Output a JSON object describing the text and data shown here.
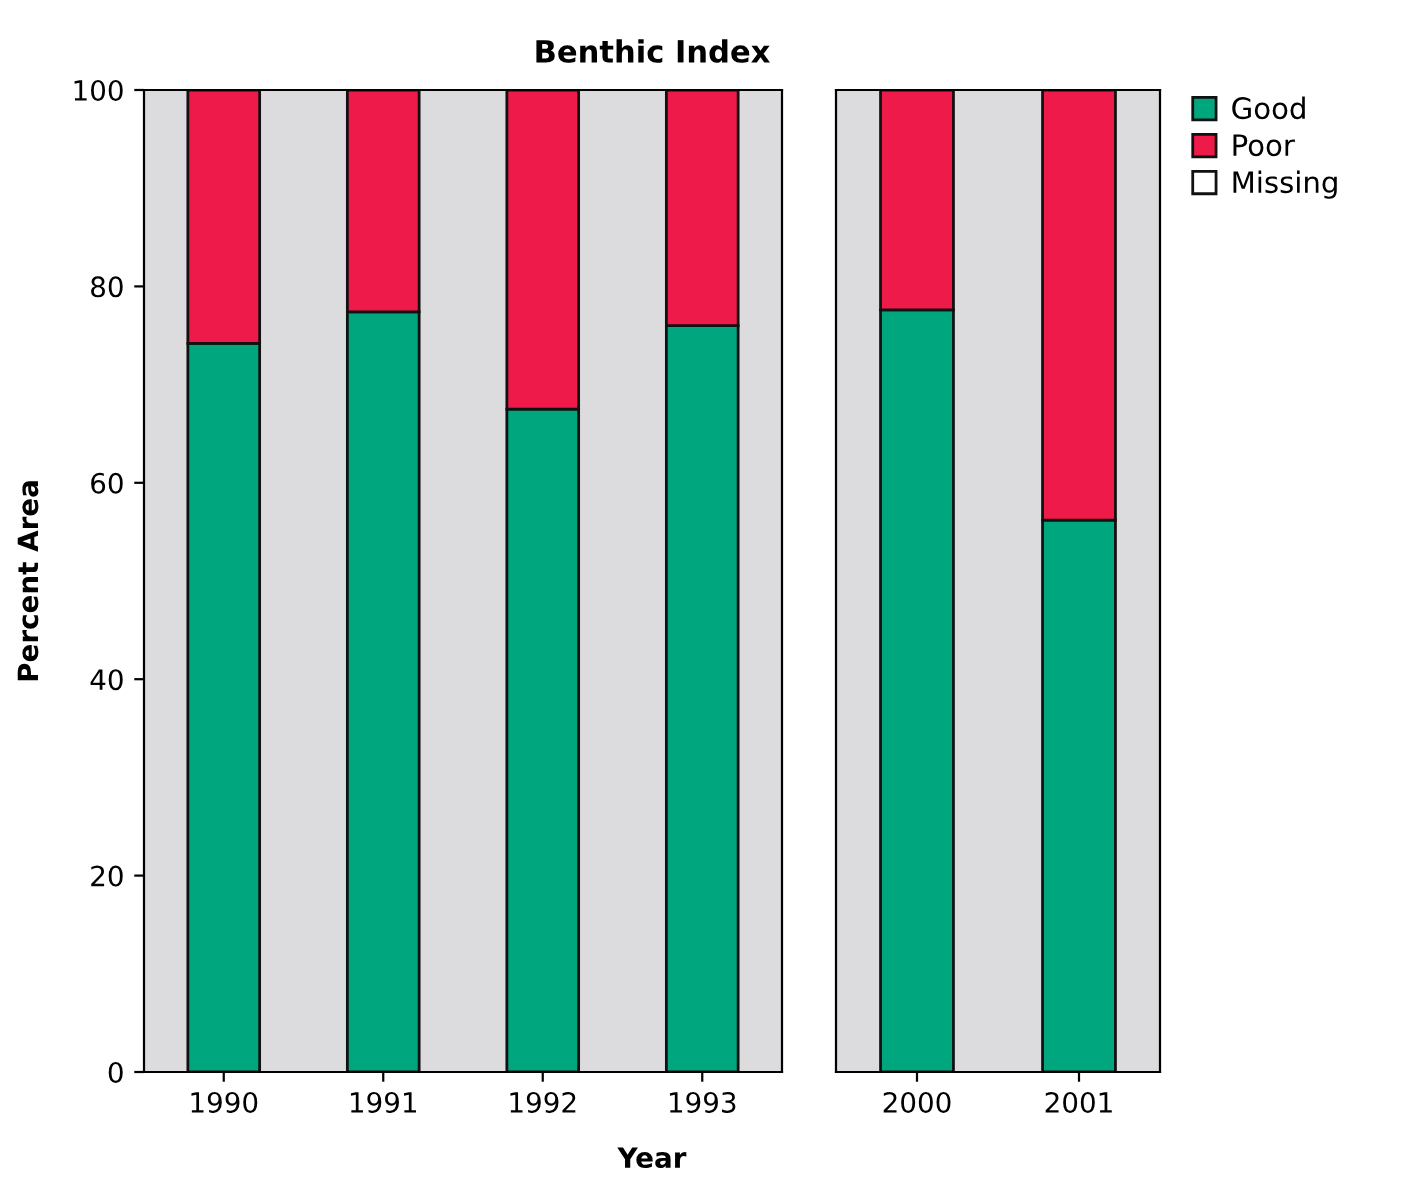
{
  "chart_data": [
    {
      "type": "bar",
      "title": "Benthic Index",
      "xlabel": "Year",
      "ylabel": "Percent Area",
      "categories": [
        "1990",
        "1991",
        "1992",
        "1993"
      ],
      "stacked": true,
      "ylim": [
        0,
        100
      ],
      "yticks": [
        0,
        20,
        40,
        60,
        80,
        100
      ],
      "grid": false,
      "legend": "top right",
      "series": [
        {
          "name": "Good",
          "color": "#00a67e",
          "values": [
            74.2,
            77.4,
            67.5,
            76.0
          ]
        },
        {
          "name": "Poor",
          "color": "#ee1a4a",
          "values": [
            25.8,
            22.6,
            32.5,
            24.0
          ]
        },
        {
          "name": "Missing",
          "color": "#ffffff",
          "values": [
            0,
            0,
            0,
            0
          ]
        }
      ]
    },
    {
      "type": "bar",
      "categories": [
        "2000",
        "2001"
      ],
      "stacked": true,
      "ylim": [
        0,
        100
      ],
      "yticks": [
        0,
        20,
        40,
        60,
        80,
        100
      ],
      "tick_labels": "x",
      "grid": false,
      "series": [
        {
          "color": "#00a67e",
          "values": [
            77.6,
            56.2
          ]
        },
        {
          "color": "#ee1a4a",
          "values": [
            22.4,
            43.8
          ]
        },
        {
          "color": "#ffffff",
          "values": [
            0,
            0
          ]
        }
      ]
    }
  ]
}
